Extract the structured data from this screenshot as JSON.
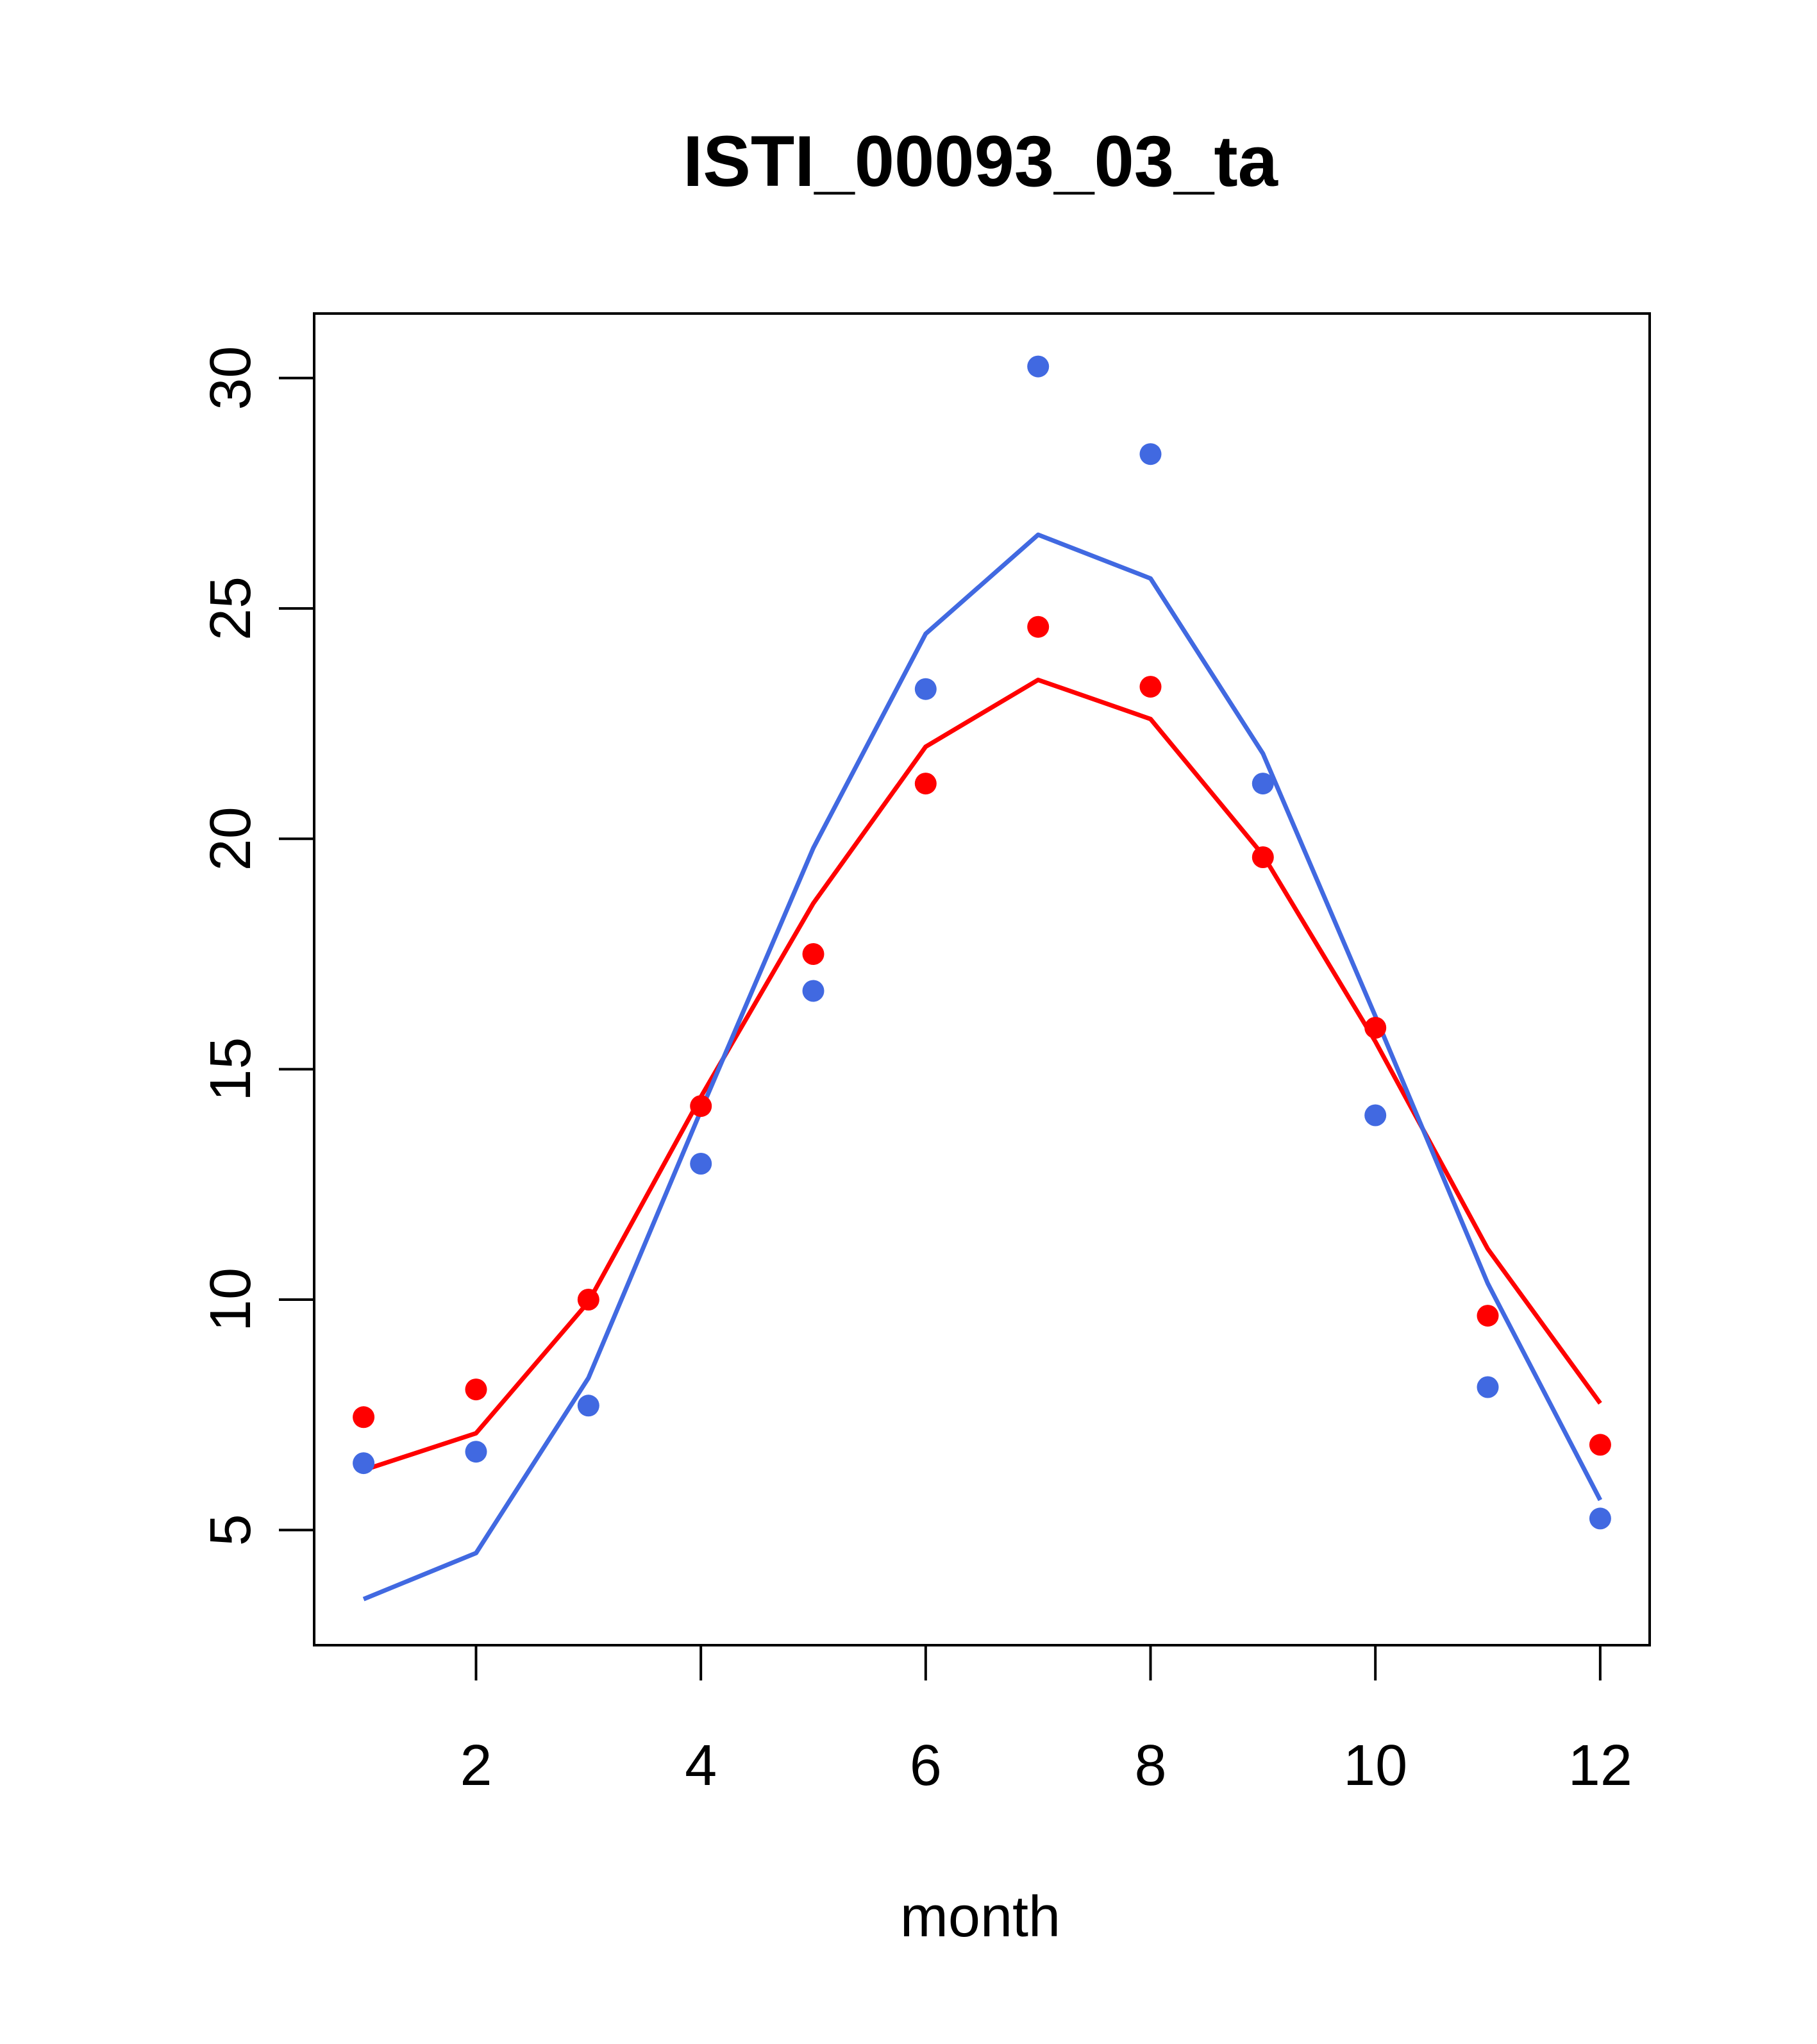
{
  "chart_data": {
    "type": "line",
    "title": "ISTI_00093_03_ta",
    "xlabel": "month",
    "ylabel": "",
    "xlim": [
      0.56,
      12.44
    ],
    "ylim": [
      2.5,
      31.4
    ],
    "x_ticks": [
      2,
      4,
      6,
      8,
      10,
      12
    ],
    "y_ticks": [
      5,
      10,
      15,
      20,
      25,
      30
    ],
    "grid": false,
    "legend": "none",
    "x": [
      1,
      2,
      3,
      4,
      5,
      6,
      7,
      8,
      9,
      10,
      11,
      12
    ],
    "series": [
      {
        "color": "#FF0000",
        "points": [
          7.45,
          8.05,
          10.0,
          14.2,
          17.5,
          21.2,
          24.6,
          23.3,
          19.6,
          15.9,
          9.65,
          6.85
        ],
        "line": [
          6.3,
          7.1,
          9.95,
          14.4,
          18.6,
          22.0,
          23.45,
          22.6,
          19.65,
          15.6,
          11.1,
          7.75
        ]
      },
      {
        "color": "#4169E1",
        "points": [
          6.45,
          6.7,
          7.7,
          12.95,
          16.7,
          23.25,
          30.25,
          28.35,
          21.2,
          14.0,
          8.1,
          5.25
        ],
        "line": [
          3.5,
          4.5,
          8.3,
          14.1,
          19.8,
          24.45,
          26.6,
          25.65,
          21.85,
          16.15,
          10.35,
          5.65
        ]
      }
    ]
  }
}
